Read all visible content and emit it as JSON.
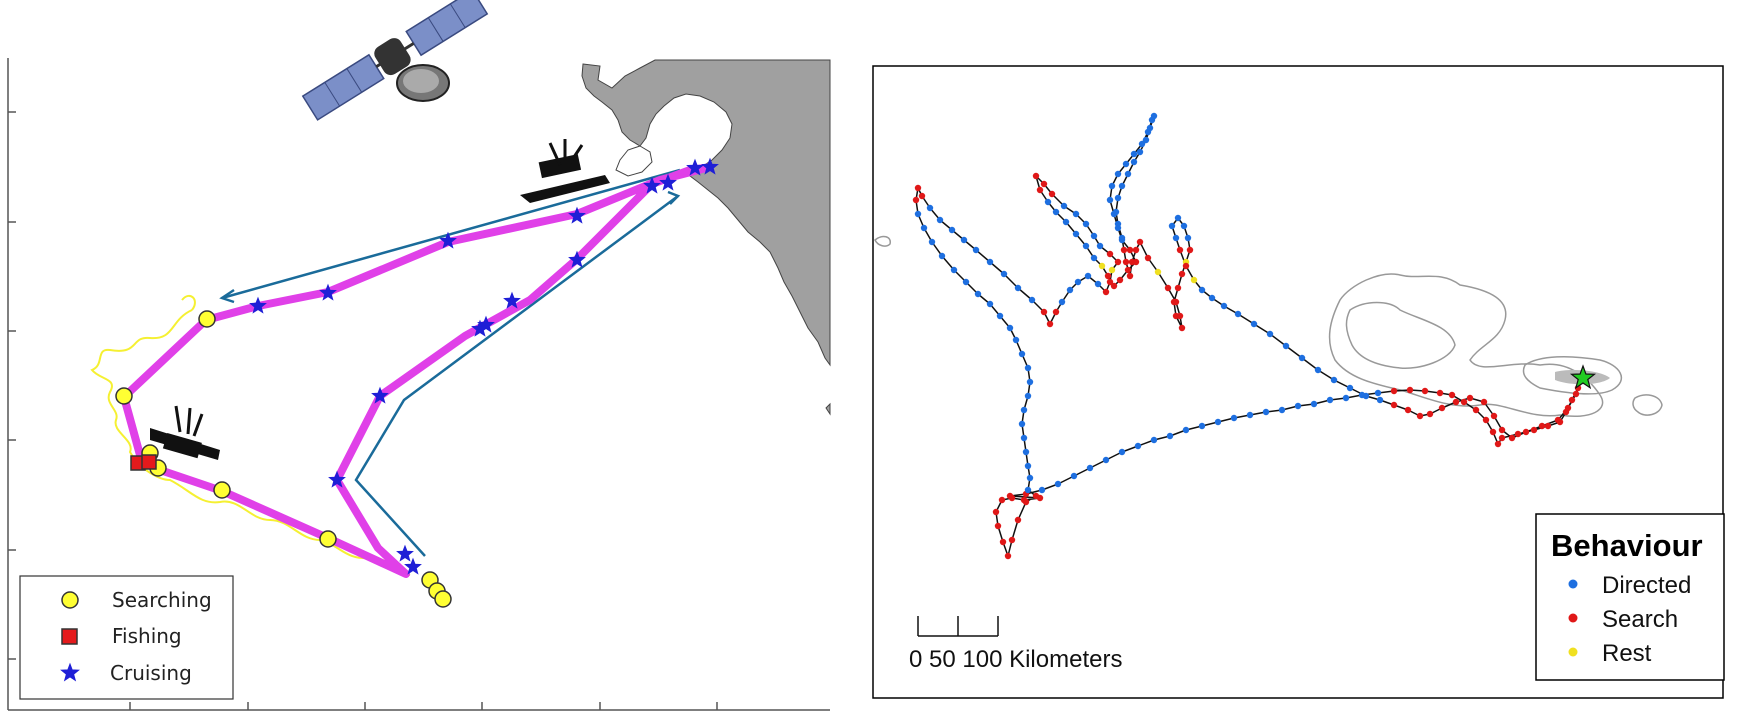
{
  "left_panel": {
    "legend": {
      "items": [
        {
          "label": "Searching",
          "marker": "circle",
          "color": "#ffff33"
        },
        {
          "label": "Fishing",
          "marker": "square",
          "color": "#e41a1c"
        },
        {
          "label": "Cruising",
          "marker": "star",
          "color": "#1f1fd6"
        }
      ]
    },
    "colors": {
      "track": "#e040e8",
      "arrow": "#1a6b9a",
      "land": "#a0a0a0",
      "wavy_trail": "#f5f032",
      "boat": "#111111"
    },
    "icons": [
      "satellite-icon",
      "fishing-boat-icon"
    ]
  },
  "right_panel": {
    "legend": {
      "title": "Behaviour",
      "items": [
        {
          "label": "Directed",
          "color": "#1e6fe0"
        },
        {
          "label": "Search",
          "color": "#e01818"
        },
        {
          "label": "Rest",
          "color": "#f0e020"
        }
      ]
    },
    "scale_bar": {
      "ticks": [
        "0",
        "50",
        "100"
      ],
      "unit": "Kilometers",
      "label": "0 50 100 Kilometers"
    },
    "colors": {
      "track_line": "#111111",
      "coastline": "#999999",
      "start_marker": "#22cc22"
    },
    "icons": [
      "start-star-icon"
    ]
  }
}
